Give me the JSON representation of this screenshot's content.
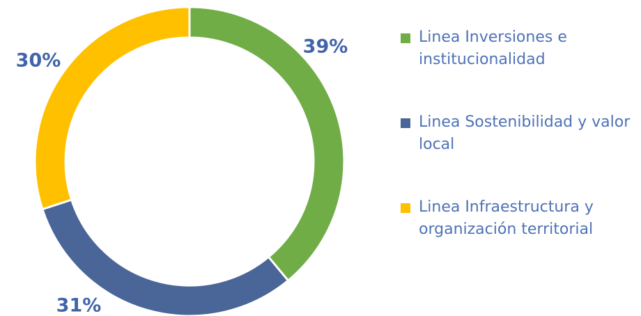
{
  "chart_data": {
    "type": "donut",
    "categories": [
      "Linea Inversiones e institucionalidad",
      "Linea Sostenibilidad y valor local",
      "Linea Infraestructura y organización territorial"
    ],
    "values": [
      39,
      31,
      30
    ],
    "value_labels": [
      "39%",
      "31%",
      "30%"
    ],
    "colors": [
      "#70ad47",
      "#4a6598",
      "#ffc000"
    ],
    "legend": "right"
  }
}
